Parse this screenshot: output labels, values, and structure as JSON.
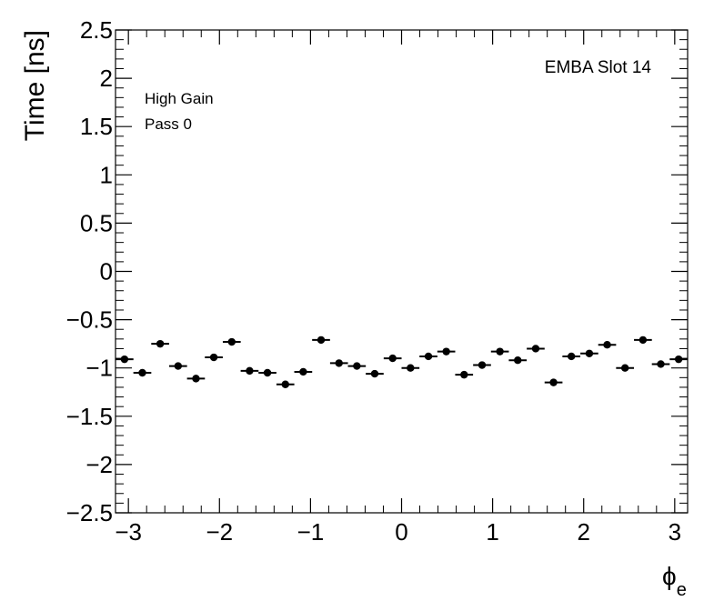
{
  "chart_data": {
    "type": "scatter",
    "ylabel": "Time [ns]",
    "xlabel_symbol": "ϕ",
    "xlabel_subscript": "e",
    "xlim": [
      -3.1416,
      3.1416
    ],
    "ylim": [
      -2.5,
      2.5
    ],
    "x_ticks": [
      -3,
      -2,
      -1,
      0,
      1,
      2,
      3
    ],
    "x_tick_labels": [
      "−3",
      "−2",
      "−1",
      "0",
      "1",
      "2",
      "3"
    ],
    "y_ticks": [
      -2.5,
      -2,
      -1.5,
      -1,
      -0.5,
      0,
      0.5,
      1,
      1.5,
      2,
      2.5
    ],
    "y_tick_labels": [
      "−2.5",
      "−2",
      "−1.5",
      "−1",
      "−0.5",
      "0",
      "0.5",
      "1",
      "1.5",
      "2",
      "2.5"
    ],
    "annotations": {
      "title": "EMBA Slot 14",
      "line1": "High Gain",
      "line2": "Pass 0"
    },
    "grid": false,
    "points": [
      {
        "x": -3.043,
        "y": -0.91
      },
      {
        "x": -2.847,
        "y": -1.05
      },
      {
        "x": -2.651,
        "y": -0.75
      },
      {
        "x": -2.454,
        "y": -0.98
      },
      {
        "x": -2.258,
        "y": -1.11
      },
      {
        "x": -2.062,
        "y": -0.89
      },
      {
        "x": -1.865,
        "y": -0.73
      },
      {
        "x": -1.669,
        "y": -1.03
      },
      {
        "x": -1.473,
        "y": -1.05
      },
      {
        "x": -1.276,
        "y": -1.17
      },
      {
        "x": -1.08,
        "y": -1.04
      },
      {
        "x": -0.884,
        "y": -0.71
      },
      {
        "x": -0.687,
        "y": -0.95
      },
      {
        "x": -0.491,
        "y": -0.98
      },
      {
        "x": -0.295,
        "y": -1.06
      },
      {
        "x": -0.098,
        "y": -0.9
      },
      {
        "x": 0.098,
        "y": -1.0
      },
      {
        "x": 0.295,
        "y": -0.88
      },
      {
        "x": 0.491,
        "y": -0.83
      },
      {
        "x": 0.687,
        "y": -1.07
      },
      {
        "x": 0.884,
        "y": -0.97
      },
      {
        "x": 1.08,
        "y": -0.83
      },
      {
        "x": 1.276,
        "y": -0.92
      },
      {
        "x": 1.473,
        "y": -0.8
      },
      {
        "x": 1.669,
        "y": -1.15
      },
      {
        "x": 1.865,
        "y": -0.88
      },
      {
        "x": 2.062,
        "y": -0.85
      },
      {
        "x": 2.258,
        "y": -0.76
      },
      {
        "x": 2.454,
        "y": -1.0
      },
      {
        "x": 2.651,
        "y": -0.71
      },
      {
        "x": 2.847,
        "y": -0.96
      },
      {
        "x": 3.043,
        "y": -0.91
      }
    ]
  }
}
